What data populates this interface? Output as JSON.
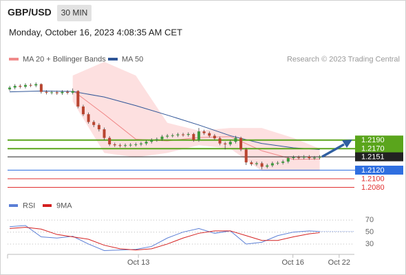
{
  "header": {
    "symbol": "GBP/USD",
    "interval": "30 MIN",
    "timestamp": "Monday, October 16, 2023 4:08:35 AM CET"
  },
  "chart_data": [
    {
      "type": "candlestick",
      "source": "Research © 2023 Trading Central",
      "up_color": "#3c9a3c",
      "down_color": "#b8442f",
      "xlim": [
        -0.4,
        65.6
      ],
      "ylim": [
        1.206,
        1.2375
      ],
      "x": [
        0,
        1,
        2,
        3,
        4,
        5,
        6,
        7,
        8,
        9,
        10,
        11,
        12,
        13,
        14,
        15,
        16,
        17,
        18,
        19,
        20,
        21,
        22,
        23,
        24,
        25,
        26,
        27,
        28,
        29,
        30,
        31,
        32,
        33,
        34,
        35,
        36,
        37,
        38,
        39,
        40,
        41,
        42,
        43,
        44,
        45,
        46,
        47,
        48,
        49,
        50,
        51,
        52,
        53,
        54,
        55,
        56,
        57,
        58,
        59
      ],
      "open": [
        1.2308,
        1.2312,
        1.2316,
        1.2314,
        1.2318,
        1.2317,
        1.232,
        1.2302,
        1.23,
        1.2301,
        1.2299,
        1.2302,
        1.23,
        1.2304,
        1.2268,
        1.225,
        1.2232,
        1.2225,
        1.2215,
        1.2195,
        1.218,
        1.2178,
        1.2177,
        1.2178,
        1.2179,
        1.218,
        1.2182,
        1.2186,
        1.219,
        1.2192,
        1.2198,
        1.22,
        1.2201,
        1.2203,
        1.2202,
        1.2204,
        1.219,
        1.221,
        1.2206,
        1.22,
        1.2194,
        1.2182,
        1.218,
        1.2186,
        1.2195,
        1.2168,
        1.2138,
        1.2134,
        1.2136,
        1.2128,
        1.2131,
        1.2136,
        1.2137,
        1.214,
        1.2148,
        1.215,
        1.2149,
        1.2151,
        1.2148,
        1.2149
      ],
      "high": [
        1.2316,
        1.232,
        1.232,
        1.2322,
        1.2322,
        1.2324,
        1.2322,
        1.2306,
        1.2305,
        1.2305,
        1.2306,
        1.2306,
        1.231,
        1.2306,
        1.2272,
        1.2254,
        1.2236,
        1.2229,
        1.2219,
        1.2199,
        1.2184,
        1.2182,
        1.2182,
        1.2183,
        1.2184,
        1.2186,
        1.219,
        1.2194,
        1.2196,
        1.2202,
        1.2204,
        1.2205,
        1.2207,
        1.2207,
        1.2208,
        1.2207,
        1.2218,
        1.2214,
        1.221,
        1.2204,
        1.2198,
        1.2186,
        1.219,
        1.22,
        1.2198,
        1.2172,
        1.2142,
        1.214,
        1.214,
        1.2135,
        1.214,
        1.2141,
        1.2144,
        1.2152,
        1.2154,
        1.2154,
        1.2155,
        1.2155,
        1.2153,
        1.2155
      ],
      "low": [
        1.2304,
        1.2308,
        1.231,
        1.231,
        1.2313,
        1.2313,
        1.2298,
        1.2296,
        1.2296,
        1.2295,
        1.2295,
        1.2296,
        1.2296,
        1.2264,
        1.2246,
        1.2228,
        1.222,
        1.221,
        1.219,
        1.2176,
        1.2174,
        1.2173,
        1.2173,
        1.2174,
        1.2175,
        1.2176,
        1.2178,
        1.2182,
        1.2186,
        1.2188,
        1.2194,
        1.2196,
        1.2197,
        1.2198,
        1.2198,
        1.2186,
        1.2186,
        1.2202,
        1.2196,
        1.219,
        1.2178,
        1.2168,
        1.2176,
        1.2182,
        1.2164,
        1.2132,
        1.213,
        1.213,
        1.2122,
        1.2124,
        1.2127,
        1.2132,
        1.2133,
        1.2136,
        1.2144,
        1.2145,
        1.2145,
        1.2144,
        1.2144,
        1.2145
      ],
      "close": [
        1.2312,
        1.2316,
        1.2314,
        1.2318,
        1.2317,
        1.232,
        1.2302,
        1.23,
        1.2301,
        1.2299,
        1.2302,
        1.23,
        1.2304,
        1.2268,
        1.225,
        1.2232,
        1.2225,
        1.2215,
        1.2195,
        1.218,
        1.2178,
        1.2177,
        1.2178,
        1.2179,
        1.218,
        1.2182,
        1.2186,
        1.219,
        1.2192,
        1.2198,
        1.22,
        1.2201,
        1.2203,
        1.2202,
        1.2204,
        1.219,
        1.221,
        1.2206,
        1.22,
        1.2194,
        1.2182,
        1.218,
        1.2186,
        1.2195,
        1.2168,
        1.2138,
        1.2134,
        1.2136,
        1.2128,
        1.2131,
        1.2136,
        1.2137,
        1.214,
        1.2148,
        1.215,
        1.2149,
        1.2151,
        1.2148,
        1.2149,
        1.2151
      ],
      "series": [
        {
          "name": "MA 20 + Bollinger Bands",
          "color": "#f08a8a",
          "band_color": "#fde0e0",
          "x": [
            12,
            18,
            24,
            30,
            36,
            42,
            48,
            54,
            59
          ],
          "values": [
            1.2305,
            1.225,
            1.2192,
            1.2188,
            1.2196,
            1.2198,
            1.2165,
            1.2145,
            1.2146
          ],
          "upper": [
            1.234,
            1.2372,
            1.234,
            1.223,
            1.2212,
            1.2218,
            1.2218,
            1.2195,
            1.217
          ],
          "lower": [
            1.228,
            1.216,
            1.215,
            1.216,
            1.2178,
            1.217,
            1.2118,
            1.2118,
            1.2118
          ]
        },
        {
          "name": "MA 50",
          "color": "#2f5597",
          "x": [
            0,
            6,
            12,
            18,
            24,
            30,
            36,
            42,
            48,
            54,
            59
          ],
          "values": [
            1.2302,
            1.2304,
            1.2303,
            1.229,
            1.227,
            1.2248,
            1.2225,
            1.22,
            1.2182,
            1.2172,
            1.2168
          ]
        }
      ],
      "levels": [
        {
          "value": 1.219,
          "label": "1.2190",
          "color": "#5aa51c",
          "boxed": true
        },
        {
          "value": 1.217,
          "label": "1.2170",
          "color": "#5aa51c",
          "boxed": true
        },
        {
          "value": 1.2151,
          "label": "1.2151",
          "color": "#222222",
          "boxed": true
        },
        {
          "value": 1.212,
          "label": "1.2120",
          "color": "#2f6fe0",
          "boxed": true
        },
        {
          "value": 1.21,
          "label": "1.2100",
          "color": "#e03030",
          "boxed": false
        },
        {
          "value": 1.208,
          "label": "1.2080",
          "color": "#e03030",
          "boxed": false
        }
      ]
    },
    {
      "type": "line",
      "xlim": [
        -0.4,
        65.6
      ],
      "ylim": [
        15,
        84
      ],
      "yticks": [
        70,
        50,
        30
      ],
      "xticks": [
        {
          "value": 24.5,
          "label": "Oct 13"
        },
        {
          "value": 53.9,
          "label": "Oct 16"
        },
        {
          "value": 62.7,
          "label": "Oct 22"
        }
      ],
      "series": [
        {
          "name": "RSI",
          "color": "#5b7fd6",
          "x": [
            0,
            3,
            6,
            9,
            12,
            15,
            18,
            21,
            24,
            27,
            30,
            33,
            36,
            39,
            42,
            45,
            48,
            51,
            54,
            57,
            59
          ],
          "values": [
            59,
            61,
            42,
            40,
            43,
            30,
            19,
            20,
            21,
            26,
            40,
            50,
            56,
            48,
            52,
            30,
            33,
            44,
            50,
            52,
            51
          ]
        },
        {
          "name": "9MA",
          "color": "#d42020",
          "x": [
            0,
            3,
            6,
            9,
            12,
            15,
            18,
            21,
            24,
            27,
            30,
            33,
            36,
            39,
            42,
            45,
            48,
            51,
            54,
            57,
            59
          ],
          "values": [
            56,
            58,
            55,
            46,
            42,
            38,
            28,
            22,
            20,
            22,
            30,
            40,
            48,
            52,
            52,
            44,
            36,
            36,
            42,
            47,
            49
          ]
        }
      ]
    }
  ]
}
